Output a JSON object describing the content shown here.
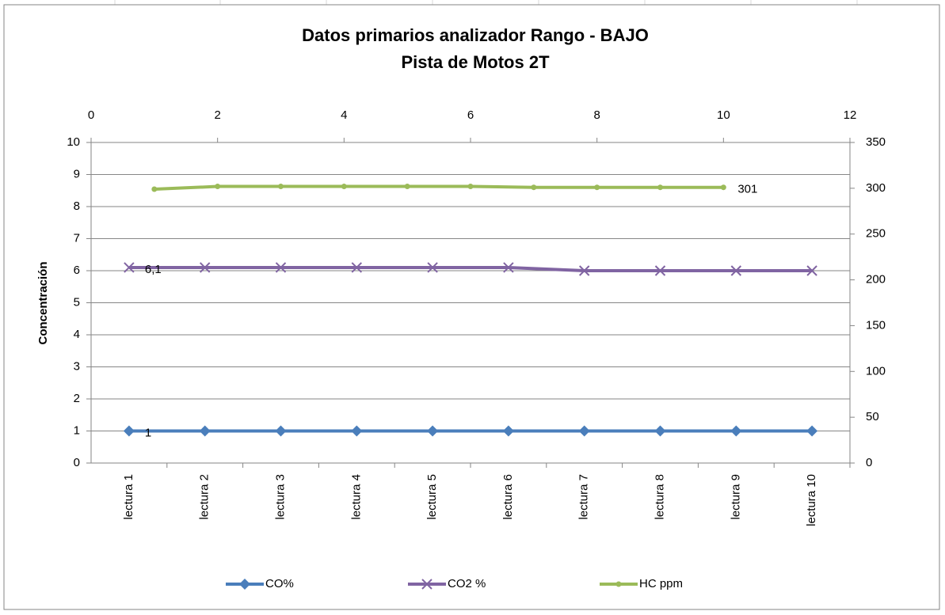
{
  "chart_data": {
    "type": "line",
    "title": "Datos primarios analizador Rango - BAJO",
    "subtitle": "Pista de Motos 2T",
    "y_label": "Concentración",
    "categories": [
      "lectura 1",
      "lectura 2",
      "lectura 3",
      "lectura 4",
      "lectura 5",
      "lectura 6",
      "lectura 7",
      "lectura 8",
      "lectura 9",
      "lectura 10"
    ],
    "ylim": [
      0,
      10
    ],
    "yticks": [
      0,
      1,
      2,
      3,
      4,
      5,
      6,
      7,
      8,
      9,
      10
    ],
    "y2lim": [
      0,
      350
    ],
    "y2ticks": [
      0,
      50,
      100,
      150,
      200,
      250,
      300,
      350
    ],
    "x2lim": [
      0,
      12
    ],
    "x2ticks": [
      0,
      2,
      4,
      6,
      8,
      10,
      12
    ],
    "grid": true,
    "legend": "bottom",
    "series": [
      {
        "name": "CO%",
        "color": "#4a7ebb",
        "marker": "diamond",
        "values": [
          1,
          1,
          1,
          1,
          1,
          1,
          1,
          1,
          1,
          1
        ]
      },
      {
        "name": "CO2 %",
        "color": "#8064a2",
        "marker": "x",
        "values": [
          6.1,
          6.1,
          6.1,
          6.1,
          6.1,
          6.1,
          6.0,
          6.0,
          6.0,
          6.0
        ],
        "value_labels": [
          "6,1",
          null,
          null,
          null,
          null,
          null,
          null,
          null,
          null,
          null
        ]
      },
      {
        "name": "HC ppm",
        "color": "#9bbb59",
        "marker": "circle",
        "axis": "y2",
        "x_axis": "x2",
        "x": [
          1,
          2,
          3,
          4,
          5,
          6,
          7,
          8,
          9,
          10
        ],
        "values": [
          299,
          302,
          302,
          302,
          302,
          302,
          301,
          301,
          301,
          301
        ]
      }
    ]
  }
}
